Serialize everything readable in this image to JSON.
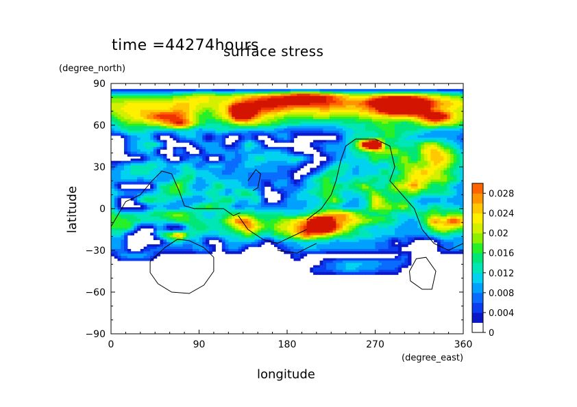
{
  "chart_data": {
    "type": "heatmap",
    "title": "surface stress",
    "time_label": "time =44274hours",
    "xlabel": "longitude",
    "ylabel": "latitude",
    "x_units": "(degree_east)",
    "y_units": "(degree_north)",
    "xlim": [
      0,
      360
    ],
    "ylim": [
      -90,
      90
    ],
    "x_ticks": [
      0,
      90,
      180,
      270,
      360
    ],
    "y_ticks": [
      -90,
      -60,
      -30,
      0,
      30,
      60,
      90
    ],
    "colorbar": {
      "min": 0,
      "max": 0.03,
      "tick_values": [
        0,
        0.004,
        0.008,
        0.012,
        0.016,
        0.02,
        0.024,
        0.028
      ],
      "tick_labels": [
        "0",
        "0.004",
        "0.008",
        "0.012",
        "0.016",
        "0.02",
        "0.024",
        "0.028"
      ],
      "colors": [
        "#ffffff",
        "#0a18c8",
        "#0a3cf0",
        "#0a6cff",
        "#00a0ff",
        "#00d2f0",
        "#00e6b4",
        "#00e678",
        "#28f028",
        "#8cf000",
        "#d2f000",
        "#fff000",
        "#ffc800",
        "#ff9600",
        "#ff6400",
        "#f03200",
        "#d21400"
      ]
    },
    "field": {
      "lat_top": 86,
      "lat_bottom": -64,
      "lat_step": 5,
      "lon_step": 10,
      "rows": [
        "1.5 1.5 1.5 1.5 1.5 1.5 1.5 1.5 1.5 1.5 1.5 1.5 1.5 1.5 1.5 1.5 1.5 1.5 1.5 1.5 1.5 1.5 1.5 1.5 1.5 1.5 1.5 1.5 1.5 1.5 1.5 1.5 1.5 1.5 1.5 1.5 1.5",
        "8 8 8 8 8 8 8 9 10 11 11 10 10 11 12 13 14 15 16 18 18 17 16 14 12 11 11 12 13 14 14 13 12 11 10 9 8",
        "10 10 11 11 11 11 11 12 12 11 11 11 12 14 16 17 18 18 17 17 17 16 16 15 14 14 15 20 30 30 30 30 20 15 13 12 11",
        "10 11 12 12 12 12 12 13 12 10 9 11 13 30 30 16 15 14 13 12 12 12 13 12 12 12 13 14 20 22 23 21 18 14 12 11 10",
        "8 10 11 12 14 16 16 15 12 9 8 10 12 20 18 13 11 10 9 9 9 10 10 9 9 9 10 11 11 12 12 13 16 20 18 12 10",
        "6 8 9 9 10 11 14 17 13 9 7 7 8 10 11 10 9 8 7 7 6 6 6 6 7 7 7 8 9 8 7 8 10 12 11 10 8",
        "4 6 7 7 6 5 5 6 6 4 5 6 6 5 4 4 5 4 3 3 3 3 4 4 5 6 7 7 8 8 7 7 6 5 4 5 4",
        "0 0 4 5 5 0 0 4 5 5 0 4 0 0 4 0 0 4 5 0 0 0 0 0 5 7 6 6 8 8 6 5 4 4 5 4 3",
        "0 0 4 6 7 7 0 0 0 4 5 4 0 3 7 5 0 0 0 0 0 3 4 4 5 8 20 30 8 7 6 7 10 11 7 6 4",
        "0 0 4 5 6 0 0 5 0 0 5 5 4 4 5 4 5 5 4 0 0 0 4 4 5 7 8 9 10 10 8 7 11 13 11 8 5",
        "0 0 0 0 4 5 0 0 4 5 0 0 5 3 5 7 6 6 6 7 5 0 0 4 5 6 6 9 8 7 10 7 10 13 12 9 6",
        "3 4 6 6 7 6 5 6 6 3 5 6 3 4 6 5 4 4 4 4 0 0 4 6 7 5 5 6 5 8 9 10 9 12 11 8 6",
        "4 5 6 7 6 5 4 5 7 6 5 4 3 5 4 4 4 4 3 0 0 4 7 8 6 4 6 5 8 6 9 11 13 11 9 7 5",
        "5 5 6 4 6 4 4 7 8 4 6 5 5 5 4 3 3 4 4 0 5 7 9 6 5 7 6 8 6 8 9 12 11 10 10 8 5",
        "5 0 0 0 0 7 8 10 5 4 5 8 5 6 4 4 0 5 4 3 5 6 9 8 7 8 10 6 7 10 11 14 10 7 8 5 4",
        "6 5 4 4 5 6 8 8 7 5 7 6 4 7 8 5 0 0 3 5 6 7 9 7 5 6 7 10 7 8 8 9 7 7 7 6 4",
        "6 0 0 7 8 7 6 5 4 4 5 7 8 5 5 7 0 0 4 5 5 5 8 10 6 4 6 12 9 7 8 5 4 4 5 4 4",
        "7 0 0 0 4 5 4 4 5 8 9 7 6 3 5 4 4 4 4 4 5 6 7 6 4 4 6 11 10 9 10 6 5 8 6 6 5",
        "8 7 7 6 7 8 9 10 8 6 5 6 8 9 8 7 7 7 6 6 7 9 11 13 13 10 8 7 8 6 6 7 8 9 8 9 8",
        "9 9 8 7 7 6 7 8 8 7 6 7 10 15 14 9 8 9 10 12 14 25 28 14 13 12 10 9 8 7 5 4 8 14 12 16 13",
        "8 8 8 0 0 5 0 0 6 8 7 6 8 10 14 11 8 10 11 13 16 24 26 15 11 8 6 5 6 5 4 4 6 10 12 10 9",
        "6 6 0 0 0 7 10 14 7 6 5 6 6 7 9 7 6 8 9 12 15 13 11 9 8 7 7 6 5 5 4 4 4 6 7 6 5",
        "4 4 0 0 0 0 5 6 4 5 0 0 5 5 5 4 0 4 5 5 6 5 6 4 5 5 4 4 4 0 4 0 0 0 4 4 5",
        "4 4 0 0 3 4 3 3 3 5 4 0 4 4 0 0 0 0 3 4 5 5 4 4 4 4 4 4 3 3 0 0 0 0 3 4 4",
        "0 4 5 5 4 0 0 0 0 0 0 0 0 0 0 0 0 0 0 3 0 0 0 0 0 0 0 0 0 0 4 0 0 0 0 0 0",
        "0 0 0 0 0 0 0 0 0 0 0 0 0 0 0 0 0 0 0 0 0 0 3 4 5 6 5 5 4 4 3 0 0 0 0 0 0",
        "0 0 0 0 0 0 0 0 0 0 0 0 0 0 0 0 0 0 0 0 0 3 3 4 5 5 4 4 3 3 0 0 0 0 0 0 0",
        "0 0 0 0 0 0 0 0 0 0 0 0 0 0 0 0 0 0 0 0 0 0 0 0 0 0 0 0 0 0 0 0 0 0 0 0 0",
        "0 0 0 0 0 0 0 0 0 0 0 0 0 0 0 0 0 0 0 0 0 0 0 0 0 0 0 0 0 0 0 0 0 0 0 0 0",
        "0 0 0 0 0 0 0 0 0 0 0 0 0 0 0 0 0 0 0 0 0 0 0 0 0 0 0 0 0 0 0 0 0 0 0 0 0",
        "0 0 0 0 0 0 0 0 0 0 0 0 0 0 0 0 0 0 0 0 0 0 0 0 0 0 0 0 0 0 0 0 0 0 0 0 0"
      ]
    }
  }
}
